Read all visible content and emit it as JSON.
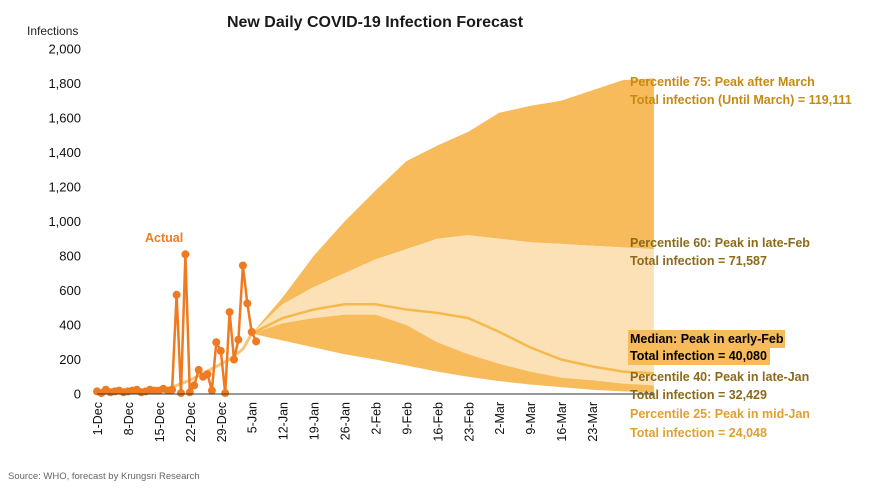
{
  "chart_data": {
    "type": "area",
    "title": "New Daily COVID-19 Infection Forecast",
    "ylabel": "Infections",
    "ylim": [
      0,
      2000
    ],
    "yticks": [
      "0",
      "200",
      "400",
      "600",
      "800",
      "1,000",
      "1,200",
      "1,400",
      "1,600",
      "1,800",
      "2,000"
    ],
    "x_tick_labels": [
      "1-Dec",
      "8-Dec",
      "15-Dec",
      "22-Dec",
      "29-Dec",
      "5-Jan",
      "12-Jan",
      "19-Jan",
      "26-Jan",
      "2-Feb",
      "9-Feb",
      "16-Feb",
      "23-Feb",
      "2-Mar",
      "9-Mar",
      "16-Mar",
      "23-Mar"
    ],
    "actual_label": "Actual",
    "actual": {
      "x": [
        0,
        1,
        2,
        3,
        4,
        5,
        6,
        7,
        8,
        9,
        10,
        11,
        12,
        13,
        14,
        15,
        16,
        17,
        18,
        19,
        20,
        21,
        22,
        23,
        24,
        25,
        26,
        27,
        28,
        29,
        30,
        31,
        32,
        33,
        34,
        35,
        36
      ],
      "values": [
        15,
        5,
        25,
        10,
        15,
        20,
        10,
        15,
        20,
        25,
        10,
        15,
        25,
        20,
        20,
        30,
        20,
        25,
        575,
        5,
        810,
        10,
        50,
        140,
        100,
        115,
        20,
        300,
        250,
        5,
        475,
        200,
        315,
        745,
        525,
        360,
        305
      ]
    },
    "fan_x": [
      35,
      42,
      49,
      56,
      63,
      70,
      77,
      84,
      91,
      98,
      105,
      112,
      119,
      126
    ],
    "series": [
      {
        "name": "Percentile 75",
        "values": [
          350,
          560,
          800,
          1000,
          1180,
          1350,
          1440,
          1520,
          1630,
          1670,
          1700,
          1760,
          1820,
          1830
        ]
      },
      {
        "name": "Percentile 60",
        "values": [
          350,
          520,
          620,
          700,
          780,
          840,
          900,
          920,
          900,
          880,
          870,
          860,
          850,
          840
        ]
      },
      {
        "name": "Median",
        "values": [
          350,
          440,
          490,
          520,
          520,
          490,
          470,
          440,
          360,
          270,
          200,
          160,
          130,
          120
        ]
      },
      {
        "name": "Percentile 40",
        "values": [
          350,
          410,
          440,
          460,
          460,
          400,
          300,
          230,
          175,
          130,
          95,
          80,
          60,
          50
        ]
      },
      {
        "name": "Percentile 25",
        "values": [
          350,
          310,
          270,
          230,
          200,
          165,
          130,
          100,
          75,
          55,
          40,
          25,
          15,
          10
        ]
      }
    ],
    "trend": {
      "x": [
        0,
        3,
        6,
        9,
        12,
        15,
        18,
        21,
        24,
        27,
        30,
        33,
        35
      ],
      "values": [
        10,
        10,
        10,
        15,
        20,
        25,
        50,
        80,
        120,
        160,
        200,
        260,
        350
      ]
    },
    "annotations": [
      {
        "line1": "Percentile 75: Peak after March",
        "line2": "Total infection (Until March) = 119,111",
        "color": "#C68A14"
      },
      {
        "line1": "Percentile 60: Peak in late-Feb",
        "line2": "Total infection = 71,587",
        "color": "#8C6A1A"
      },
      {
        "line1": "Median: Peak in early-Feb",
        "line2": "Total infection = 40,080",
        "color": "#000000",
        "highlight": "#F7BB5C"
      },
      {
        "line1": "Percentile 40: Peak in late-Jan",
        "line2": "Total infection = 32,429",
        "color": "#8C6A1A"
      },
      {
        "line1": "Percentile 25: Peak in mid-Jan",
        "line2": "Total infection = 24,048",
        "color": "#E0A030"
      }
    ],
    "colors": {
      "outer_band": "#F7BB5C",
      "inner_band": "#FDE1B6",
      "median_line": "#F5B94E",
      "actual_line": "#EE7B22",
      "actual_label": "#EE7B22",
      "trend_line": "#F5C77E"
    },
    "grid": false
  },
  "source": "Source: WHO, forecast by Krungsri Research"
}
